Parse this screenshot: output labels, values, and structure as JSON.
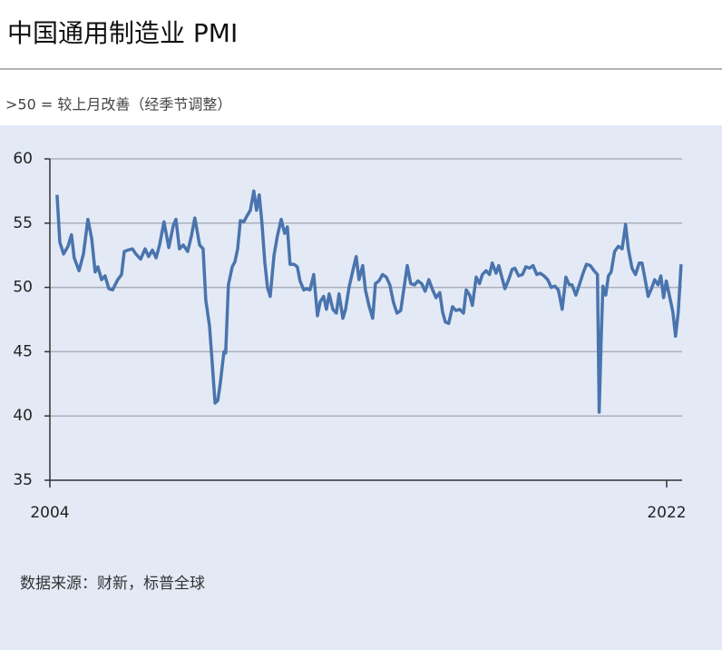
{
  "chart_data": {
    "type": "line",
    "title": "中国通用制造业 PMI",
    "subtitle": ">50 = 较上月改善（经季节调整）",
    "source": "数据来源：财新，标普全球",
    "color": "#4a74ad",
    "grid": true,
    "xlim": [
      2004,
      2022.45
    ],
    "xticks": [
      2004,
      2022
    ],
    "ylim": [
      35,
      60
    ],
    "yticks": [
      35,
      40,
      45,
      50,
      55,
      60
    ],
    "x": [
      2004.21,
      2004.29,
      2004.4,
      2004.53,
      2004.63,
      2004.71,
      2004.85,
      2004.98,
      2005.11,
      2005.22,
      2005.32,
      2005.4,
      2005.51,
      2005.61,
      2005.72,
      2005.83,
      2005.98,
      2006.09,
      2006.17,
      2006.28,
      2006.41,
      2006.51,
      2006.65,
      2006.78,
      2006.88,
      2006.99,
      2007.1,
      2007.2,
      2007.33,
      2007.47,
      2007.6,
      2007.68,
      2007.78,
      2007.89,
      2008.02,
      2008.13,
      2008.23,
      2008.37,
      2008.47,
      2008.55,
      2008.66,
      2008.74,
      2008.82,
      2008.9,
      2008.97,
      2009.08,
      2009.13,
      2009.21,
      2009.32,
      2009.4,
      2009.48,
      2009.56,
      2009.66,
      2009.74,
      2009.85,
      2009.95,
      2010.03,
      2010.11,
      2010.19,
      2010.27,
      2010.35,
      2010.43,
      2010.54,
      2010.64,
      2010.75,
      2010.85,
      2010.93,
      2011.01,
      2011.12,
      2011.22,
      2011.3,
      2011.41,
      2011.49,
      2011.59,
      2011.7,
      2011.81,
      2011.89,
      2011.99,
      2012.07,
      2012.15,
      2012.26,
      2012.36,
      2012.44,
      2012.55,
      2012.63,
      2012.73,
      2012.84,
      2012.94,
      2013.02,
      2013.13,
      2013.21,
      2013.31,
      2013.42,
      2013.5,
      2013.6,
      2013.71,
      2013.82,
      2013.92,
      2014.03,
      2014.13,
      2014.24,
      2014.32,
      2014.43,
      2014.53,
      2014.64,
      2014.74,
      2014.85,
      2014.95,
      2015.06,
      2015.17,
      2015.27,
      2015.38,
      2015.46,
      2015.54,
      2015.64,
      2015.75,
      2015.85,
      2015.96,
      2016.07,
      2016.15,
      2016.25,
      2016.33,
      2016.44,
      2016.54,
      2016.62,
      2016.73,
      2016.83,
      2016.91,
      2017.02,
      2017.1,
      2017.18,
      2017.28,
      2017.39,
      2017.49,
      2017.57,
      2017.68,
      2017.79,
      2017.89,
      2018.0,
      2018.1,
      2018.21,
      2018.31,
      2018.42,
      2018.53,
      2018.63,
      2018.74,
      2018.84,
      2018.95,
      2019.06,
      2019.16,
      2019.24,
      2019.35,
      2019.45,
      2019.56,
      2019.66,
      2019.77,
      2019.88,
      2019.98,
      2020.03,
      2020.09,
      2020.14,
      2020.22,
      2020.3,
      2020.38,
      2020.48,
      2020.59,
      2020.7,
      2020.8,
      2020.88,
      2020.99,
      2021.09,
      2021.2,
      2021.28,
      2021.36,
      2021.46,
      2021.57,
      2021.65,
      2021.75,
      2021.83,
      2021.91,
      2021.99,
      2022.1,
      2022.18,
      2022.26,
      2022.34,
      2022.42
    ],
    "values": [
      57.2,
      53.5,
      52.6,
      53.2,
      54.1,
      52.3,
      51.3,
      52.6,
      55.3,
      53.8,
      51.2,
      51.6,
      50.6,
      50.9,
      49.9,
      49.8,
      50.6,
      51.0,
      52.8,
      52.9,
      53.0,
      52.6,
      52.2,
      53.0,
      52.4,
      52.9,
      52.3,
      53.3,
      55.1,
      53.1,
      54.8,
      55.3,
      53.0,
      53.3,
      52.8,
      54.0,
      55.4,
      53.3,
      53.0,
      49.0,
      47.0,
      44.0,
      41.0,
      41.2,
      42.5,
      45.0,
      44.9,
      50.2,
      51.6,
      52.0,
      53.0,
      55.2,
      55.1,
      55.5,
      56.0,
      57.5,
      56.0,
      57.2,
      55.0,
      52.0,
      50.0,
      49.3,
      52.5,
      54.0,
      55.3,
      54.2,
      54.7,
      51.8,
      51.8,
      51.6,
      50.5,
      49.8,
      49.9,
      49.8,
      51.0,
      47.8,
      48.9,
      49.3,
      48.3,
      49.5,
      48.3,
      48.0,
      49.5,
      47.6,
      48.3,
      50.0,
      51.3,
      52.4,
      50.6,
      51.7,
      49.8,
      48.6,
      47.6,
      50.3,
      50.5,
      51.0,
      50.8,
      50.2,
      48.8,
      48.0,
      48.2,
      49.7,
      51.7,
      50.3,
      50.2,
      50.5,
      50.3,
      49.7,
      50.6,
      49.8,
      49.2,
      49.6,
      48.1,
      47.3,
      47.2,
      48.5,
      48.2,
      48.3,
      48.0,
      49.8,
      49.4,
      48.6,
      50.8,
      50.3,
      51.0,
      51.3,
      51.0,
      51.9,
      51.1,
      51.7,
      50.9,
      49.9,
      50.6,
      51.4,
      51.5,
      50.9,
      51.0,
      51.6,
      51.5,
      51.7,
      51.0,
      51.1,
      50.9,
      50.6,
      50.0,
      50.1,
      49.8,
      48.3,
      50.8,
      50.2,
      50.2,
      49.4,
      50.2,
      51.1,
      51.8,
      51.7,
      51.3,
      51.0,
      40.3,
      46.0,
      50.1,
      49.4,
      50.9,
      51.2,
      52.8,
      53.2,
      53.0,
      54.9,
      53.0,
      51.5,
      51.0,
      51.9,
      51.9,
      50.8,
      49.3,
      50.0,
      50.6,
      50.2,
      50.9,
      49.2,
      50.5,
      49.1,
      48.1,
      46.2,
      48.1,
      51.8
    ]
  }
}
